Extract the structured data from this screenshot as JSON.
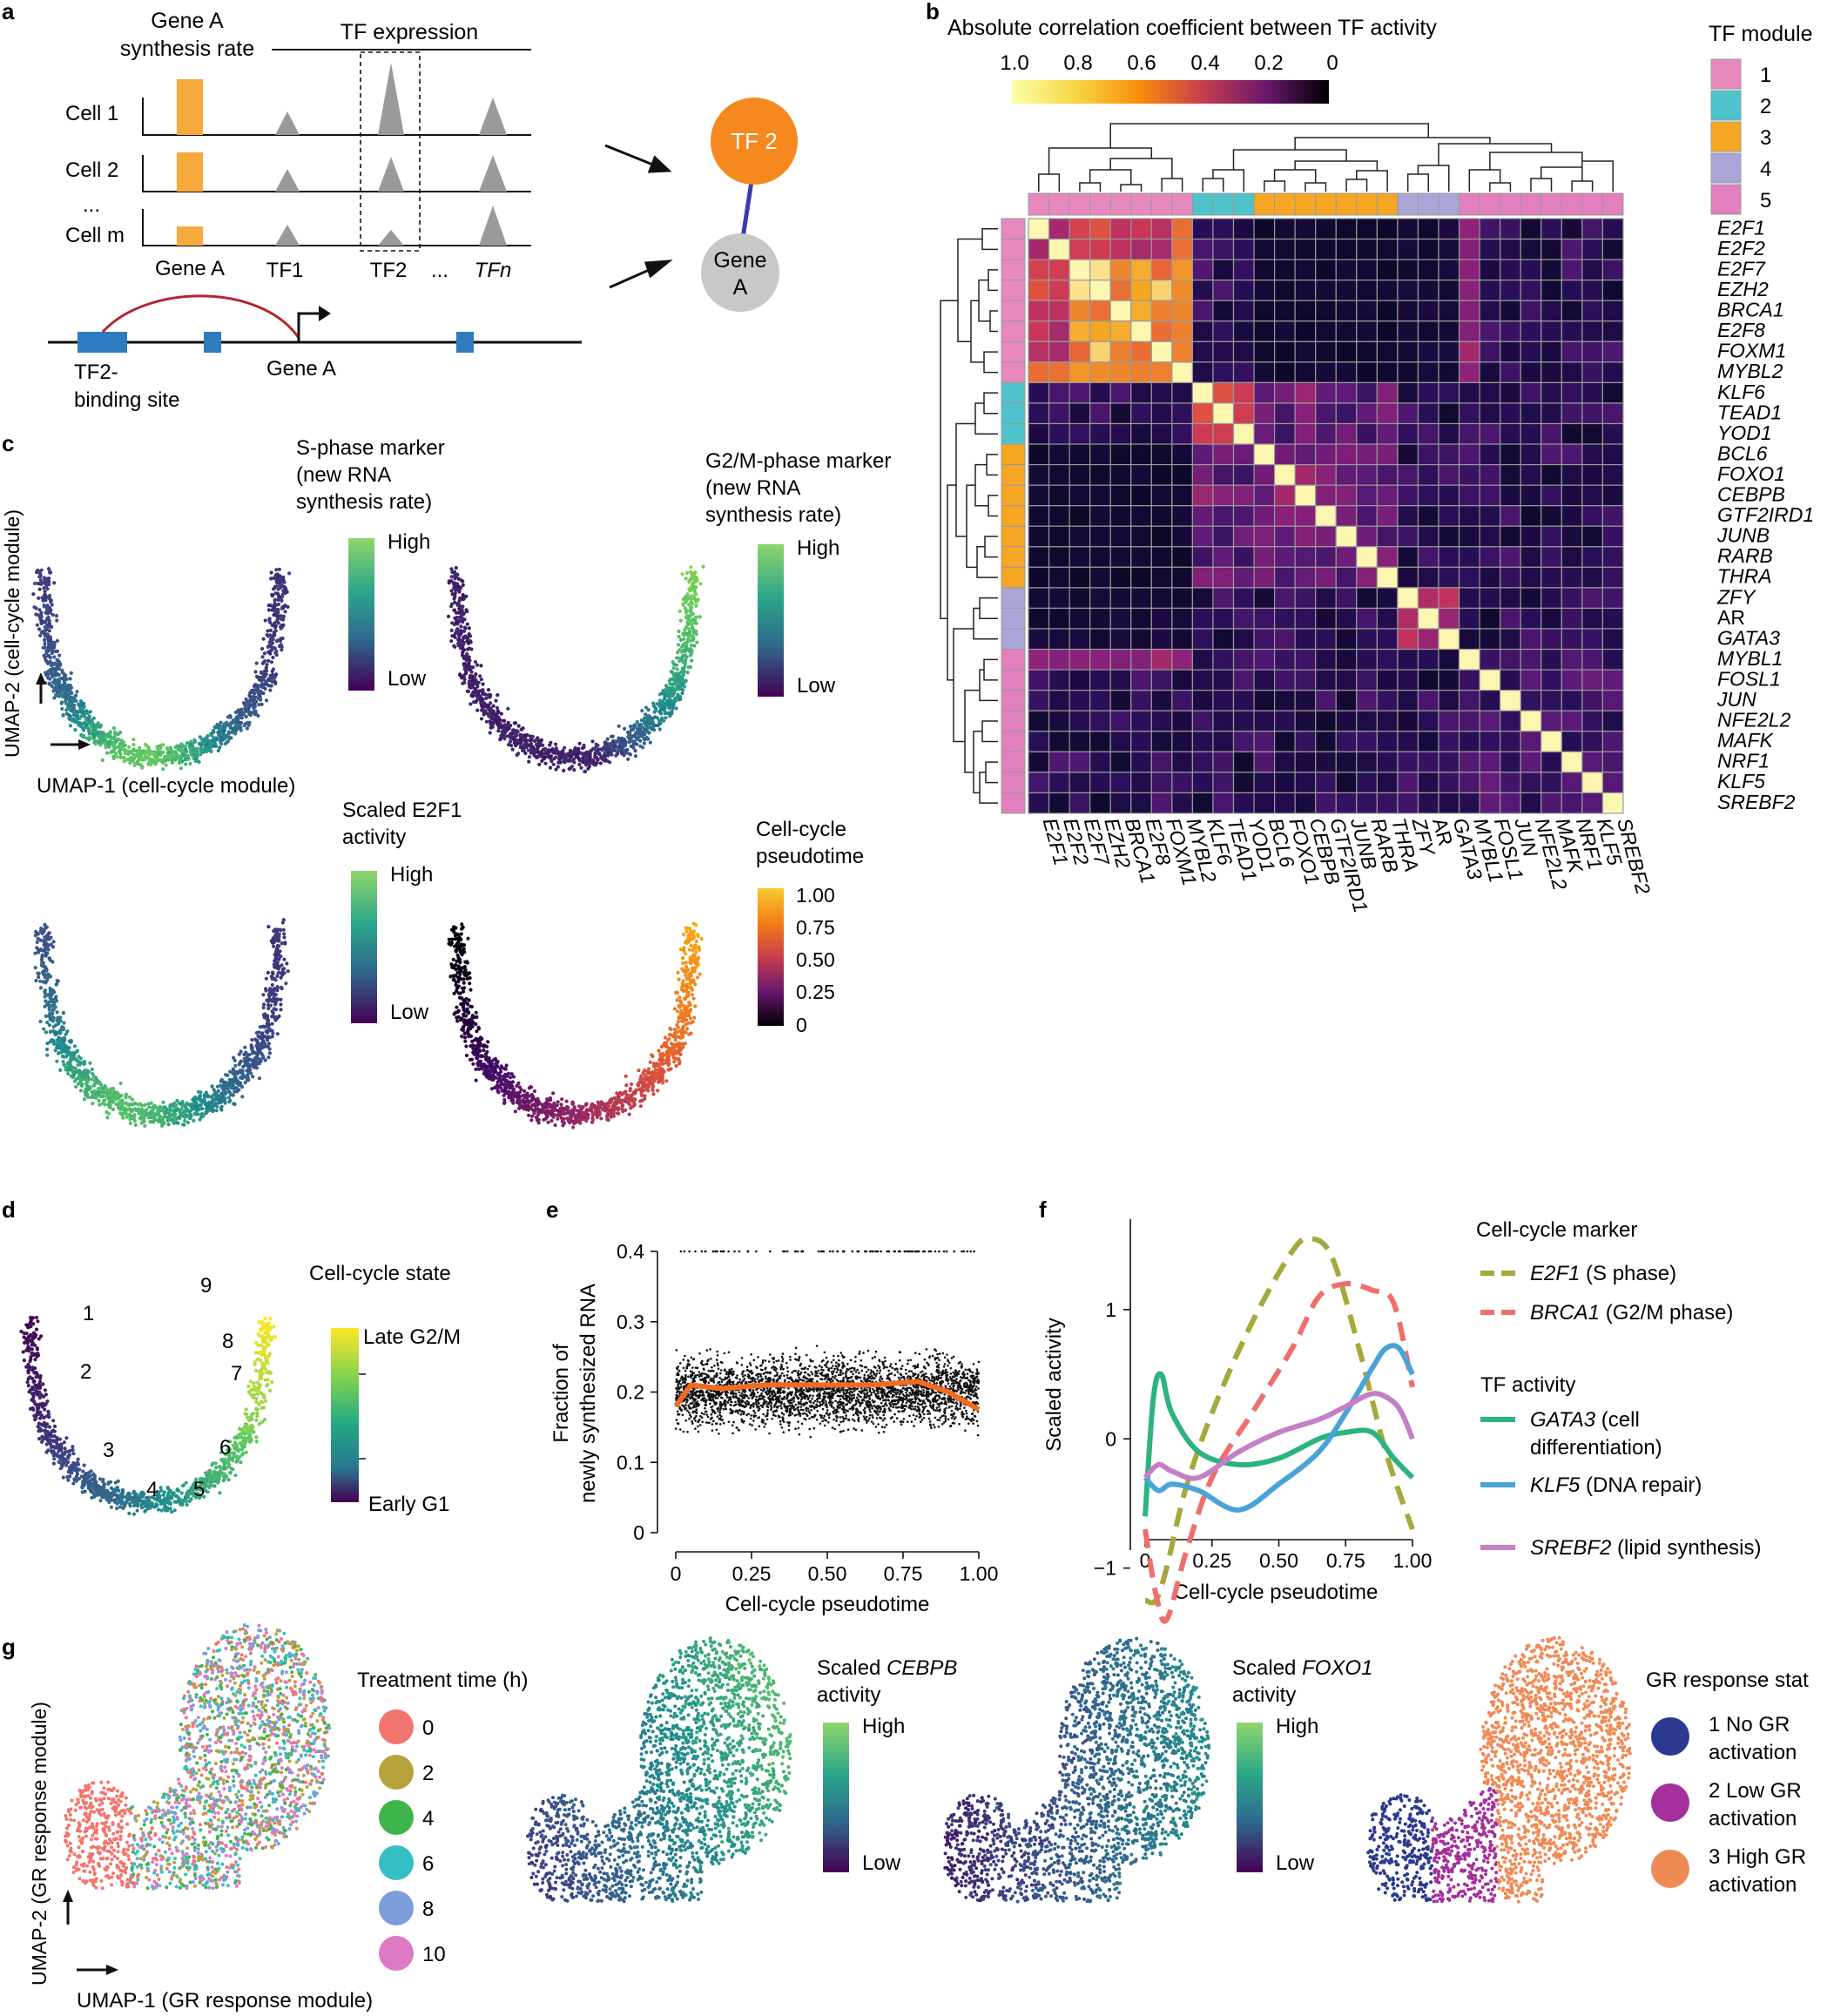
{
  "panels": {
    "a": {
      "letter": "a",
      "synthesis_label_1": "Gene A",
      "synthesis_label_2": "synthesis rate",
      "tf_expression": "TF expression",
      "cells": [
        "Cell 1",
        "Cell 2",
        "...",
        "Cell m"
      ],
      "x_labels": [
        "Gene A",
        "TF1",
        "TF2",
        "...",
        "TFn"
      ],
      "network_tf": "TF 2",
      "network_gene_1": "Gene",
      "network_gene_2": "A",
      "binding_site_1": "TF2-",
      "binding_site_2": "binding site",
      "gene_label": "Gene A",
      "orange": "#F7A93B",
      "grey": "#9a9a9a",
      "blue": "#2e7bbf"
    },
    "b": {
      "letter": "b",
      "title": "Absolute correlation coefficient between TF activity",
      "colorbar_ticks": [
        "1.0",
        "0.8",
        "0.6",
        "0.4",
        "0.2",
        "0"
      ],
      "module_legend_title": "TF module",
      "module_legend": [
        "1",
        "2",
        "3",
        "4",
        "5"
      ],
      "module_colors": [
        "#E889BE",
        "#4FC3CB",
        "#F5A623",
        "#A9A5D6",
        "#E17FBF"
      ],
      "genes": [
        "E2F1",
        "E2F2",
        "E2F7",
        "EZH2",
        "BRCA1",
        "E2F8",
        "FOXM1",
        "MYBL2",
        "KLF6",
        "TEAD1",
        "YOD1",
        "BCL6",
        "FOXO1",
        "CEBPB",
        "GTF2IRD1",
        "JUNB",
        "RARB",
        "THRA",
        "ZFY",
        "AR",
        "GATA3",
        "MYBL1",
        "FOSL1",
        "JUN",
        "NFE2L2",
        "MAFK",
        "NRF1",
        "KLF5",
        "SREBF2"
      ],
      "gene_modules": [
        1,
        1,
        1,
        1,
        1,
        1,
        1,
        1,
        2,
        2,
        2,
        3,
        3,
        3,
        3,
        3,
        3,
        3,
        4,
        4,
        4,
        5,
        5,
        5,
        5,
        5,
        5,
        5,
        5
      ]
    },
    "c": {
      "letter": "c",
      "s_title": [
        "S-phase marker",
        "(new RNA",
        "synthesis rate)"
      ],
      "g2m_title": [
        "G2/M-phase marker",
        "(new RNA",
        "synthesis rate)"
      ],
      "e2f1_title": [
        "Scaled E2F1",
        "activity"
      ],
      "pseudotime_title": [
        "Cell-cycle",
        "pseudotime"
      ],
      "high": "High",
      "low": "Low",
      "pseudotime_ticks": [
        "1.00",
        "0.75",
        "0.50",
        "0.25",
        "0"
      ],
      "umap2": "UMAP-2 (cell-cycle module)",
      "umap1": "UMAP-1 (cell-cycle module)"
    },
    "d": {
      "letter": "d",
      "title": "Cell-cycle state",
      "late": "Late G2/M",
      "early": "Early G1",
      "numbers": [
        "1",
        "2",
        "3",
        "4",
        "5",
        "6",
        "7",
        "8",
        "9"
      ]
    },
    "g": {
      "letter": "g",
      "treatment_title": "Treatment time (h)",
      "treatment_times": [
        "0",
        "2",
        "4",
        "6",
        "8",
        "10"
      ],
      "treatment_colors": [
        "#F2766E",
        "#B8A23B",
        "#3DB54A",
        "#35BFC4",
        "#7C9EDB",
        "#DE79C6"
      ],
      "cebpb_title_1": "Scaled",
      "cebpb_title_gene": "CEBPB",
      "cebpb_title_2": "activity",
      "foxo1_title_1": "Scaled",
      "foxo1_title_gene": "FOXO1",
      "foxo1_title_2": "activity",
      "high": "High",
      "low": "Low",
      "gr_title": "GR response stat",
      "gr_states": [
        {
          "line1": "1 No GR",
          "line2": "activation",
          "color": "#2B3990"
        },
        {
          "line1": "2 Low GR",
          "line2": "activation",
          "color": "#A3309C"
        },
        {
          "line1": "3 High GR",
          "line2": "activation",
          "color": "#F08A55"
        }
      ],
      "umap2": "UMAP-2 (GR response module)",
      "umap1": "UMAP-1 (GR response module)"
    }
  },
  "chart_data": [
    {
      "id": "e",
      "type": "scatter",
      "title": "",
      "xlabel": "Cell-cycle pseudotime",
      "ylabel": "Fraction of newly synthesized RNA",
      "xlim": [
        0,
        1.0
      ],
      "ylim": [
        0,
        0.4
      ],
      "x_ticks": [
        "0",
        "0.25",
        "0.50",
        "0.75",
        "1.00"
      ],
      "y_ticks": [
        "0",
        "0.1",
        "0.2",
        "0.3",
        "0.4"
      ],
      "trend": {
        "x": [
          0,
          0.05,
          0.15,
          0.3,
          0.5,
          0.65,
          0.8,
          0.9,
          1.0
        ],
        "y": [
          0.18,
          0.21,
          0.205,
          0.21,
          0.21,
          0.21,
          0.215,
          0.2,
          0.175
        ],
        "color": "#F26B21"
      },
      "letter": "e"
    },
    {
      "id": "f",
      "type": "line",
      "xlabel": "Cell-cycle pseudotime",
      "ylabel": "Scaled activity",
      "xlim": [
        0,
        1.0
      ],
      "ylim": [
        -1.4,
        1.7
      ],
      "x_ticks": [
        "0",
        "0.25",
        "0.50",
        "0.75",
        "1.00"
      ],
      "y_ticks": [
        "−1",
        "0",
        "1"
      ],
      "legend_header_marker": "Cell-cycle marker",
      "legend_header_tf": "TF activity",
      "series": [
        {
          "name": "E2F1",
          "note": "(S phase)",
          "style": "dashed",
          "color": "#A6A83A",
          "x": [
            0,
            0.04,
            0.08,
            0.15,
            0.25,
            0.4,
            0.55,
            0.62,
            0.7,
            0.8,
            0.9,
            1.0
          ],
          "y": [
            -1.25,
            -1.25,
            -1.0,
            -0.4,
            0.2,
            0.9,
            1.45,
            1.55,
            1.4,
            0.7,
            -0.1,
            -0.7
          ]
        },
        {
          "name": "BRCA1",
          "note": "(G2/M phase)",
          "style": "dashed",
          "color": "#EE6F6B",
          "x": [
            0,
            0.04,
            0.08,
            0.15,
            0.25,
            0.4,
            0.55,
            0.65,
            0.75,
            0.85,
            0.93,
            1.0
          ],
          "y": [
            -0.7,
            -1.2,
            -1.4,
            -0.9,
            -0.3,
            0.2,
            0.7,
            1.1,
            1.2,
            1.15,
            1.05,
            0.4
          ]
        },
        {
          "name": "GATA3",
          "note": "(cell differentiation)",
          "style": "solid",
          "color": "#2DB37E",
          "x": [
            0,
            0.03,
            0.06,
            0.1,
            0.2,
            0.35,
            0.5,
            0.65,
            0.75,
            0.85,
            0.93,
            1.0
          ],
          "y": [
            -0.6,
            0.3,
            0.5,
            0.2,
            -0.1,
            -0.2,
            -0.15,
            0.0,
            0.05,
            0.05,
            -0.15,
            -0.3
          ]
        },
        {
          "name": "KLF5",
          "note": "(DNA repair)",
          "style": "solid",
          "color": "#4AA3D8",
          "x": [
            0,
            0.05,
            0.1,
            0.2,
            0.35,
            0.5,
            0.65,
            0.75,
            0.85,
            0.9,
            0.95,
            1.0
          ],
          "y": [
            -0.3,
            -0.4,
            -0.35,
            -0.4,
            -0.55,
            -0.35,
            -0.1,
            0.2,
            0.55,
            0.7,
            0.7,
            0.5
          ]
        },
        {
          "name": "SREBF2",
          "note": "(lipid synthesis)",
          "style": "solid",
          "color": "#C47FC6",
          "x": [
            0,
            0.05,
            0.1,
            0.2,
            0.35,
            0.5,
            0.65,
            0.75,
            0.85,
            0.92,
            0.96,
            1.0
          ],
          "y": [
            -0.3,
            -0.2,
            -0.25,
            -0.3,
            -0.1,
            0.05,
            0.15,
            0.25,
            0.35,
            0.3,
            0.2,
            0.0
          ]
        }
      ],
      "letter": "f"
    }
  ]
}
